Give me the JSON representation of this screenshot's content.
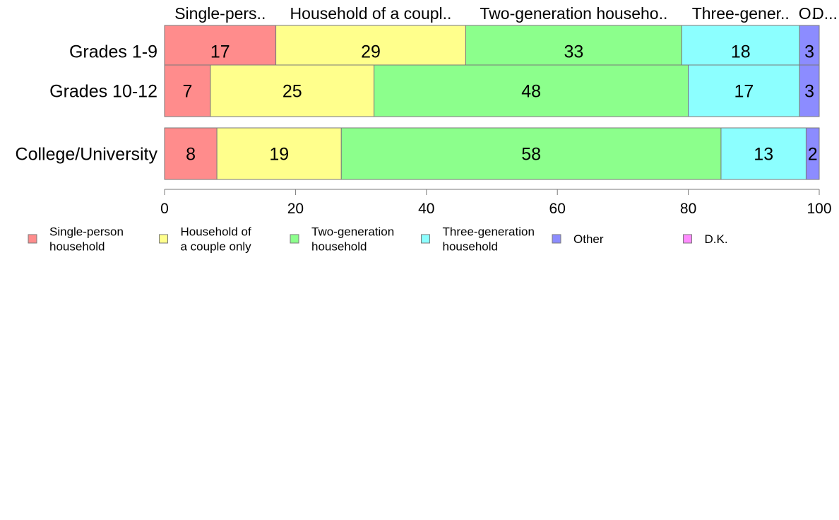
{
  "chart_data": {
    "type": "bar",
    "orientation": "horizontal",
    "stacked": true,
    "categories": [
      "Grades 1-9",
      "Grades 10-12",
      "College/University"
    ],
    "series": [
      {
        "name": "Single-person household",
        "top_label": "Single-pers..",
        "legend_lines": [
          "Single-person",
          "household"
        ],
        "color": "#FF8C8C",
        "values": [
          17,
          7,
          8
        ]
      },
      {
        "name": "Household of a couple only",
        "top_label": "Household of a coupl..",
        "legend_lines": [
          "Household of",
          "a couple only"
        ],
        "color": "#FFFF8C",
        "values": [
          29,
          25,
          19
        ]
      },
      {
        "name": "Two-generation household",
        "top_label": "Two-generation househo..",
        "legend_lines": [
          "Two-generation",
          "household"
        ],
        "color": "#8CFF8C",
        "values": [
          33,
          48,
          58
        ]
      },
      {
        "name": "Three-generation household",
        "top_label": "Three-gener..",
        "legend_lines": [
          "Three-generation",
          "household"
        ],
        "color": "#8CFFFF",
        "values": [
          18,
          17,
          13
        ]
      },
      {
        "name": "Other",
        "top_label": "O..",
        "legend_lines": [
          "Other"
        ],
        "color": "#8C8CFF",
        "values": [
          3,
          3,
          2
        ]
      },
      {
        "name": "D.K.",
        "top_label": "D...",
        "legend_lines": [
          "D.K."
        ],
        "color": "#FF8CFF",
        "values": [
          0,
          0,
          0
        ]
      }
    ],
    "xlim": [
      0,
      100
    ],
    "xticks": [
      0,
      20,
      40,
      60,
      80,
      100
    ],
    "xlabel": "",
    "ylabel": "",
    "title": "",
    "grid": false,
    "legend_position": "bottom",
    "data_labels": true
  }
}
